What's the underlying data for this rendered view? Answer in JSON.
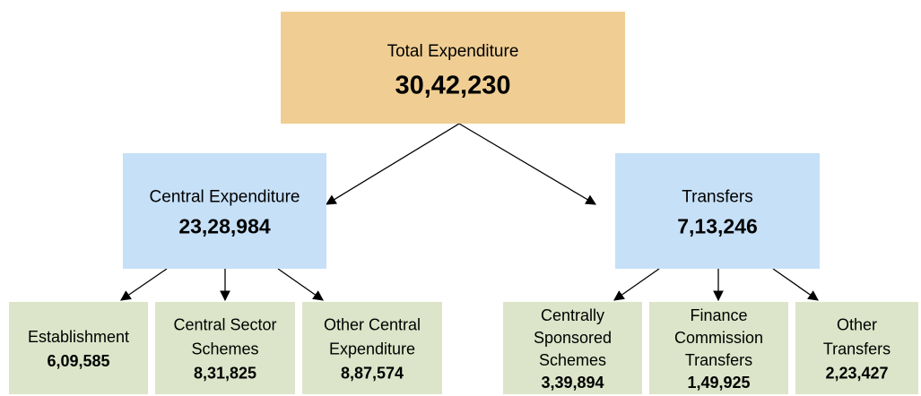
{
  "nodes": [
    {
      "label": [
        "Total Expenditure"
      ],
      "value": "30,42,230"
    },
    {
      "label": [
        "Central Expenditure"
      ],
      "value": "23,28,984"
    },
    {
      "label": [
        "Transfers"
      ],
      "value": "7,13,246"
    },
    {
      "label": [
        "Establishment"
      ],
      "value": "6,09,585"
    },
    {
      "label": [
        "Central Sector",
        "Schemes"
      ],
      "value": "8,31,825"
    },
    {
      "label": [
        "Other Central",
        "Expenditure"
      ],
      "value": "8,87,574"
    },
    {
      "label": [
        "Centrally",
        "Sponsored",
        "Schemes"
      ],
      "value": "3,39,894"
    },
    {
      "label": [
        "Finance",
        "Commission",
        "Transfers"
      ],
      "value": "1,49,925"
    },
    {
      "label": [
        "Other",
        "Transfers"
      ],
      "value": "2,23,427"
    }
  ]
}
